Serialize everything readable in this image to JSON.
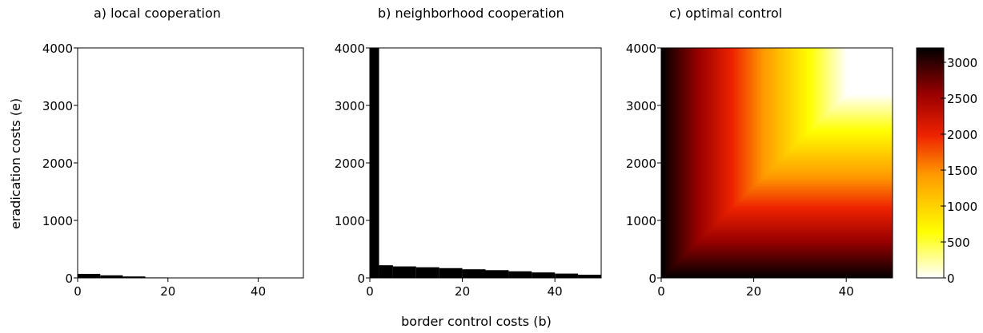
{
  "figure": {
    "shared_xlabel": "border control costs (b)",
    "shared_ylabel": "eradication costs (e)"
  },
  "chart_data": [
    {
      "type": "heatmap",
      "title": "a) local cooperation",
      "xlabel": "",
      "ylabel": "eradication costs (e)",
      "xlim": [
        0,
        50
      ],
      "ylim": [
        0,
        4000
      ],
      "xticks": [
        0,
        20,
        40
      ],
      "yticks": [
        0,
        1000,
        2000,
        3000,
        4000
      ],
      "regions": [
        {
          "label": "black region",
          "b_edges": [
            0,
            5,
            10,
            15,
            20
          ],
          "e_top": [
            70,
            45,
            25,
            8
          ]
        }
      ]
    },
    {
      "type": "heatmap",
      "title": "b) neighborhood cooperation",
      "xlabel": "border control costs (b)",
      "ylabel": "",
      "xlim": [
        0,
        50
      ],
      "ylim": [
        0,
        4000
      ],
      "xticks": [
        0,
        20,
        40
      ],
      "yticks": [
        0,
        1000,
        2000,
        3000,
        4000
      ],
      "regions": [
        {
          "label": "black region",
          "b_edges": [
            0,
            2,
            5,
            10,
            15,
            20,
            25,
            30,
            35,
            40,
            45,
            50
          ],
          "e_top": [
            4000,
            220,
            200,
            185,
            170,
            150,
            135,
            115,
            95,
            75,
            55
          ]
        }
      ]
    },
    {
      "type": "heatmap",
      "title": "c) optimal control",
      "xlabel": "",
      "ylabel": "",
      "xlim": [
        0,
        50
      ],
      "ylim": [
        0,
        4000
      ],
      "xticks": [
        0,
        20,
        40
      ],
      "yticks": [
        0,
        1000,
        2000,
        3000,
        4000
      ],
      "value_model": "value = min(b, e/80) * 80",
      "colorbar": {
        "ticks": [
          0,
          500,
          1000,
          1500,
          2000,
          2500,
          3000
        ],
        "range": [
          0,
          3200
        ],
        "colormap": "hot (reversed)",
        "colors": [
          "#ffffff",
          "#ffff00",
          "#ff9900",
          "#ee2200",
          "#990000",
          "#000000"
        ]
      }
    }
  ]
}
